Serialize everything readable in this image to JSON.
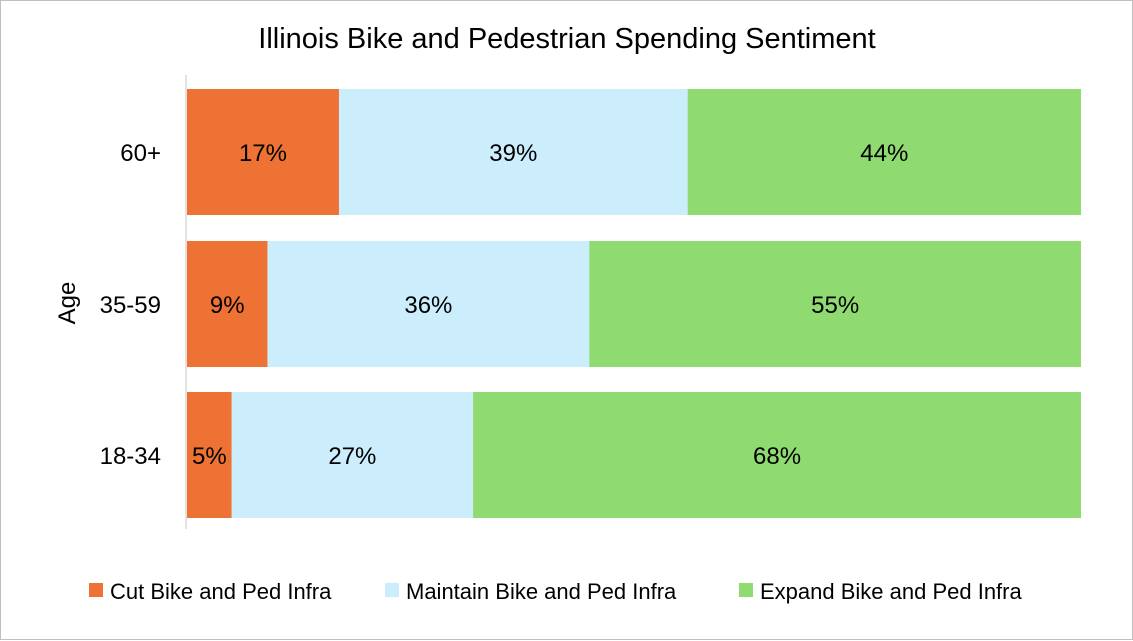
{
  "chart_data": {
    "type": "bar",
    "orientation": "horizontal",
    "stacked": true,
    "percent_stacked": true,
    "title": "Illinois Bike and Pedestrian Spending Sentiment",
    "ylabel": "Age",
    "xlabel": "",
    "categories": [
      "60+",
      "35-59",
      "18-34"
    ],
    "series": [
      {
        "name": "Cut Bike and Ped Infra",
        "color": "#ED7233",
        "values": [
          17,
          9,
          5
        ],
        "labels": [
          "17%",
          "9%",
          "5%"
        ]
      },
      {
        "name": "Maintain Bike and Ped Infra",
        "color": "#CCEDFB",
        "values": [
          39,
          36,
          27
        ],
        "labels": [
          "39%",
          "36%",
          "27%"
        ]
      },
      {
        "name": "Expand Bike and Ped Infra",
        "color": "#8FDA71",
        "values": [
          44,
          55,
          68
        ],
        "labels": [
          "44%",
          "55%",
          "68%"
        ]
      }
    ],
    "xlim": [
      0,
      100
    ],
    "grid": false,
    "legend_position": "bottom"
  }
}
